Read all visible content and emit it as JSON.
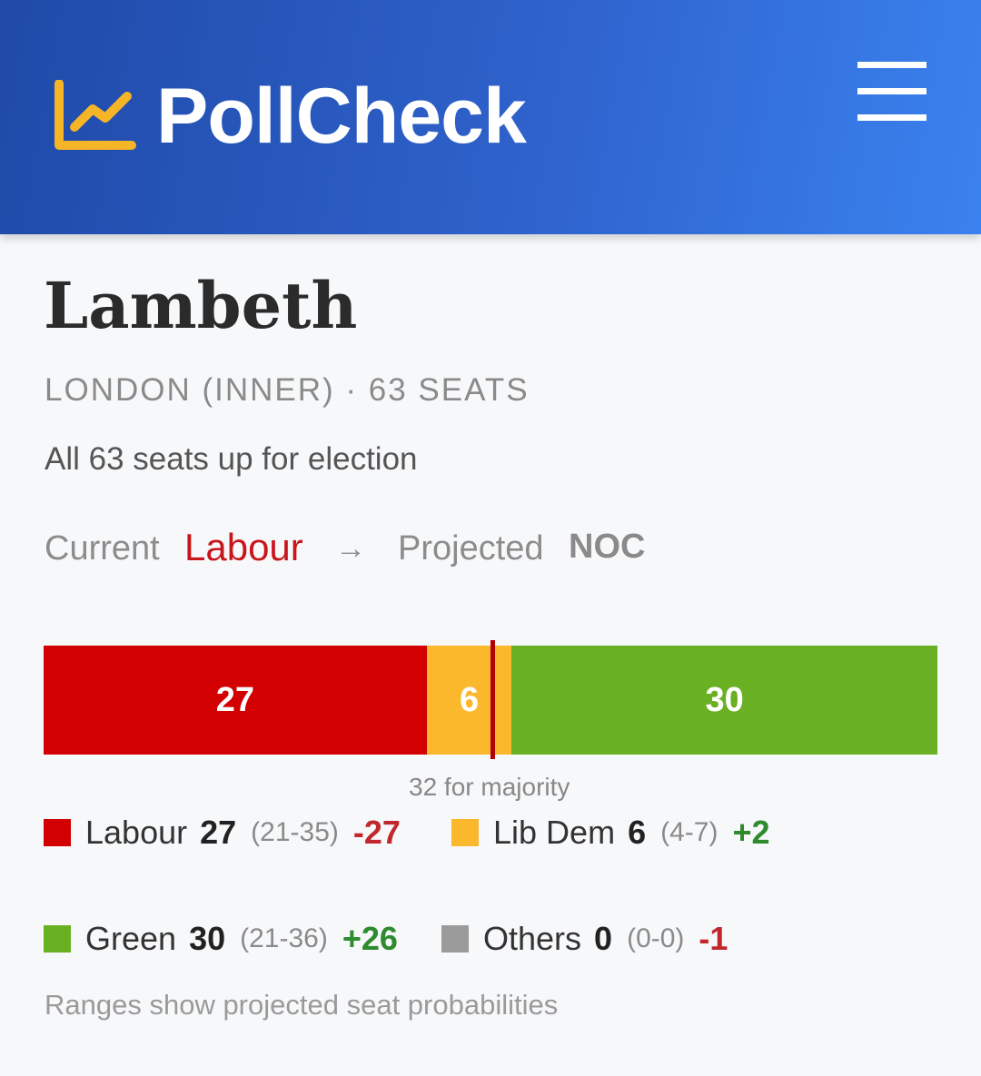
{
  "header": {
    "brand": "PollCheck",
    "logo_icon": "chart-line-icon",
    "menu_icon": "hamburger-menu-icon",
    "colors": {
      "logo": "#f6b526",
      "background_start": "#1f4aa8",
      "background_end": "#3a82ef"
    }
  },
  "council": {
    "name": "Lambeth",
    "meta": "LONDON (INNER) · 63 SEATS",
    "description": "All 63 seats up for election"
  },
  "status": {
    "current_label": "Current",
    "current_value": "Labour",
    "arrow": "→",
    "projected_label": "Projected",
    "projected_value": "NOC",
    "current_color": "#c8161d"
  },
  "seat_bar": {
    "total": 63,
    "majority": 32,
    "majority_label": "32 for majority",
    "segments": [
      {
        "party": "Labour",
        "seats": 27,
        "label": "27",
        "color": "#d20000"
      },
      {
        "party": "Lib Dem",
        "seats": 6,
        "label": "6",
        "color": "#fbb82c"
      },
      {
        "party": "Green",
        "seats": 30,
        "label": "30",
        "color": "#6ab023"
      }
    ]
  },
  "legend": [
    {
      "party": "Labour",
      "seats": "27",
      "range": "(21-35)",
      "change": "-27",
      "color": "#d20000"
    },
    {
      "party": "Lib Dem",
      "seats": "6",
      "range": "(4-7)",
      "change": "+2",
      "color": "#fbb82c"
    },
    {
      "party": "Green",
      "seats": "30",
      "range": "(21-36)",
      "change": "+26",
      "color": "#6ab023"
    },
    {
      "party": "Others",
      "seats": "0",
      "range": "(0-0)",
      "change": "-1",
      "color": "#9b9b9b"
    }
  ],
  "footnote": "Ranges show projected seat probabilities"
}
